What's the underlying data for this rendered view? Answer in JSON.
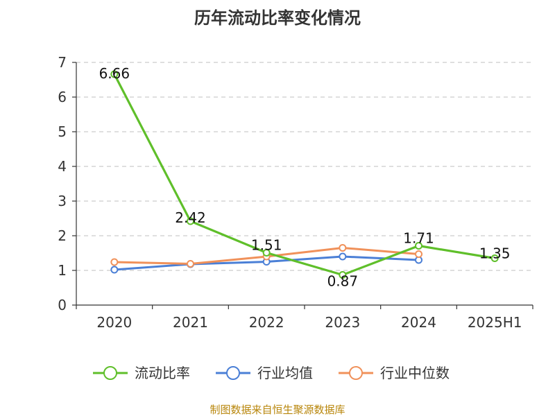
{
  "chart_data": {
    "type": "line",
    "title": "历年流动比率变化情况",
    "categories": [
      "2020",
      "2021",
      "2022",
      "2023",
      "2024",
      "2025H1"
    ],
    "ylim": [
      0,
      7
    ],
    "yticks": [
      0,
      1,
      2,
      3,
      4,
      5,
      6,
      7
    ],
    "grid": true,
    "legend_position": "bottom",
    "series": [
      {
        "name": "流动比率",
        "color": "#5fbf2a",
        "values": [
          6.66,
          2.42,
          1.51,
          0.87,
          1.71,
          1.35
        ],
        "labels": [
          "6.66",
          "2.42",
          "1.51",
          "0.87",
          "1.71",
          "1.35"
        ]
      },
      {
        "name": "行业均值",
        "color": "#4a7fd6",
        "values": [
          1.02,
          1.18,
          1.25,
          1.4,
          1.3,
          null
        ]
      },
      {
        "name": "行业中位数",
        "color": "#f0915a",
        "values": [
          1.24,
          1.19,
          1.4,
          1.65,
          1.47,
          null
        ]
      }
    ]
  },
  "footer": {
    "source": "制图数据来自恒生聚源数据库"
  }
}
